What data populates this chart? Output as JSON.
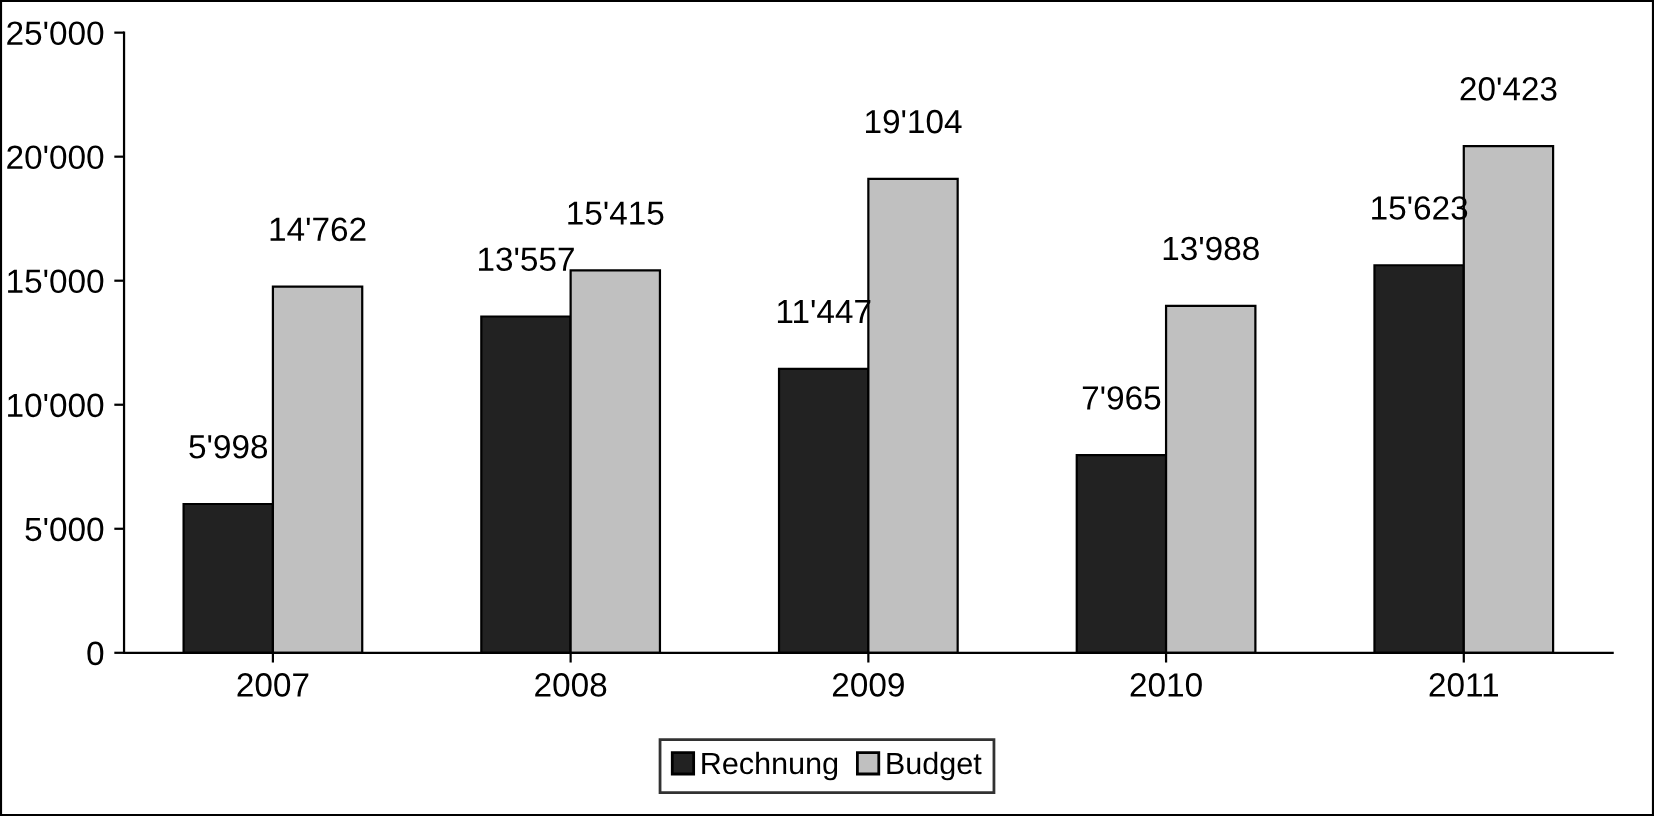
{
  "chart_data": {
    "type": "bar",
    "categories": [
      "2007",
      "2008",
      "2009",
      "2010",
      "2011"
    ],
    "series": [
      {
        "name": "Rechnung",
        "color": "#222222",
        "values": [
          5998,
          13557,
          11447,
          7965,
          15623
        ],
        "value_labels": [
          "5'998",
          "13'557",
          "11'447",
          "7'965",
          "15'623"
        ]
      },
      {
        "name": "Budget",
        "color": "#c0c0c0",
        "values": [
          14762,
          15415,
          19104,
          13988,
          20423
        ],
        "value_labels": [
          "14'762",
          "15'415",
          "19'104",
          "13'988",
          "20'423"
        ]
      }
    ],
    "ylim": [
      0,
      25000
    ],
    "yticks": [
      {
        "value": 0,
        "label": "0"
      },
      {
        "value": 5000,
        "label": "5'000"
      },
      {
        "value": 10000,
        "label": "10'000"
      },
      {
        "value": 15000,
        "label": "15'000"
      },
      {
        "value": 20000,
        "label": "20'000"
      },
      {
        "value": 25000,
        "label": "25'000"
      }
    ],
    "grid": false,
    "legend": "bottom"
  }
}
